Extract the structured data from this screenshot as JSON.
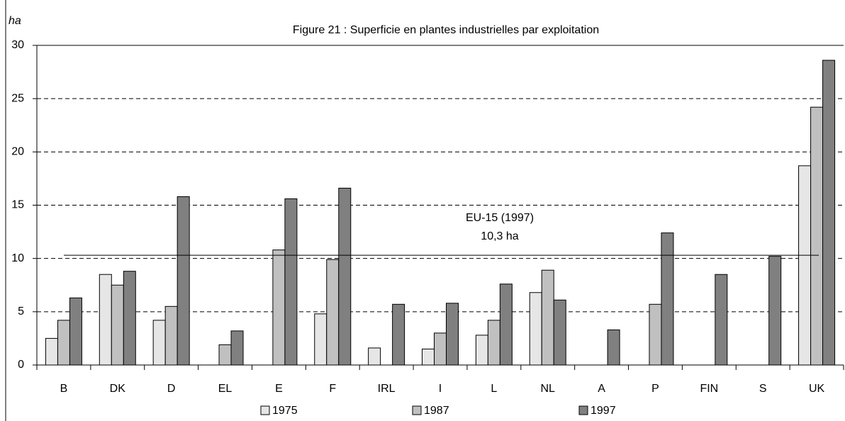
{
  "chart_data": {
    "type": "bar",
    "title": "Figure 21 : Superficie en plantes industrielles par exploitation",
    "y_label": "ha",
    "categories": [
      "B",
      "DK",
      "D",
      "EL",
      "E",
      "F",
      "IRL",
      "I",
      "L",
      "NL",
      "A",
      "P",
      "FIN",
      "S",
      "UK"
    ],
    "series": [
      {
        "name": "1975",
        "color": "#e6e6e6",
        "values": [
          2.5,
          8.5,
          4.2,
          null,
          null,
          4.8,
          1.6,
          1.5,
          2.8,
          6.8,
          null,
          null,
          null,
          null,
          18.7
        ]
      },
      {
        "name": "1987",
        "color": "#c0c0c0",
        "values": [
          4.2,
          7.5,
          5.5,
          1.9,
          10.8,
          9.9,
          null,
          3.0,
          4.2,
          8.9,
          null,
          5.7,
          null,
          null,
          24.2
        ]
      },
      {
        "name": "1997",
        "color": "#808080",
        "values": [
          6.3,
          8.8,
          15.8,
          3.2,
          15.6,
          16.6,
          5.7,
          5.8,
          7.6,
          6.1,
          3.3,
          12.4,
          8.5,
          10.2,
          28.6
        ]
      }
    ],
    "reference_line": {
      "value": 10.3,
      "label": [
        "EU-15 (1997)",
        "10,3 ha"
      ]
    },
    "ylim": [
      0,
      30
    ],
    "yticks": [
      0,
      5,
      10,
      15,
      20,
      25,
      30
    ],
    "grid": true,
    "legend": "bottom"
  }
}
